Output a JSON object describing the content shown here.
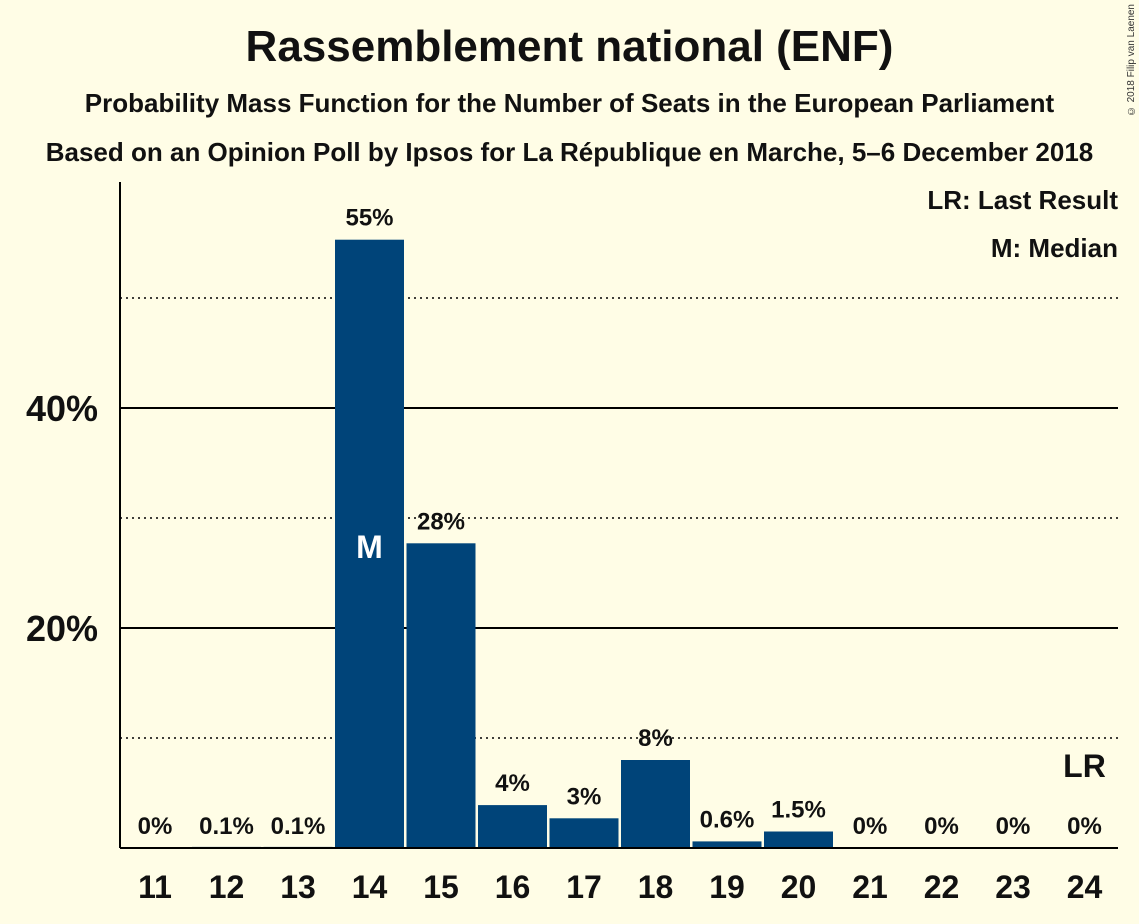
{
  "chart_data": {
    "type": "bar",
    "title": "Rassemblement national (ENF)",
    "subtitle_1": "Probability Mass Function for the Number of Seats in the European Parliament",
    "subtitle_2": "Based on an Opinion Poll by Ipsos for La République en Marche, 5–6 December 2018",
    "copyright": "© 2018 Filip van Laenen",
    "categories": [
      "11",
      "12",
      "13",
      "14",
      "15",
      "16",
      "17",
      "18",
      "19",
      "20",
      "21",
      "22",
      "23",
      "24"
    ],
    "values": [
      0,
      0.1,
      0.1,
      55.3,
      27.7,
      3.9,
      2.7,
      8.0,
      0.6,
      1.5,
      0,
      0,
      0,
      0
    ],
    "data_labels": [
      "0%",
      "0.1%",
      "0.1%",
      "55%",
      "28%",
      "4%",
      "3%",
      "8%",
      "0.6%",
      "1.5%",
      "0%",
      "0%",
      "0%",
      "0%"
    ],
    "ylim": [
      0,
      60
    ],
    "yticks": [
      20,
      40
    ],
    "ytick_labels": [
      "20%",
      "40%"
    ],
    "minor_gridlines": [
      10,
      30,
      50
    ],
    "median_category": "14",
    "median_marker": "M",
    "last_result_category": "24",
    "last_result_marker": "LR",
    "legend": [
      "LR: Last Result",
      "M: Median"
    ],
    "bar_color": "#004479",
    "background_color": "#fffde6"
  }
}
